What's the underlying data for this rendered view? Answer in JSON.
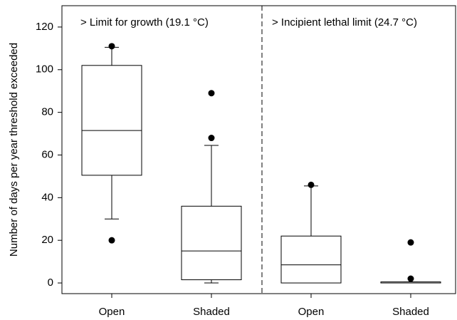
{
  "chart_data": {
    "type": "box",
    "y_label": "Number of days per year threshold exceeded",
    "annotations": [
      "> Limit for growth (19.1 °C)",
      "> Incipient lethal limit (24.7 °C)"
    ],
    "categories": [
      "Open",
      "Shaded",
      "Open",
      "Shaded"
    ],
    "boxes": [
      {
        "whislo": 30,
        "q1": 50.5,
        "med": 71.5,
        "q3": 102,
        "whishi": 110.5,
        "fliers": [
          111,
          20
        ]
      },
      {
        "whislo": 0,
        "q1": 1.5,
        "med": 15,
        "q3": 36,
        "whishi": 64.5,
        "fliers": [
          89,
          68
        ]
      },
      {
        "whislo": 0,
        "q1": 0,
        "med": 8.5,
        "q3": 22,
        "whishi": 45.5,
        "fliers": [
          46
        ]
      },
      {
        "whislo": 0,
        "q1": 0,
        "med": 0,
        "q3": 0.5,
        "whishi": 0.5,
        "fliers": [
          19,
          2
        ]
      }
    ],
    "color": "#000000",
    "ylim": [
      -5,
      130
    ],
    "yticks": [
      0,
      20,
      40,
      60,
      80,
      100,
      120
    ]
  }
}
